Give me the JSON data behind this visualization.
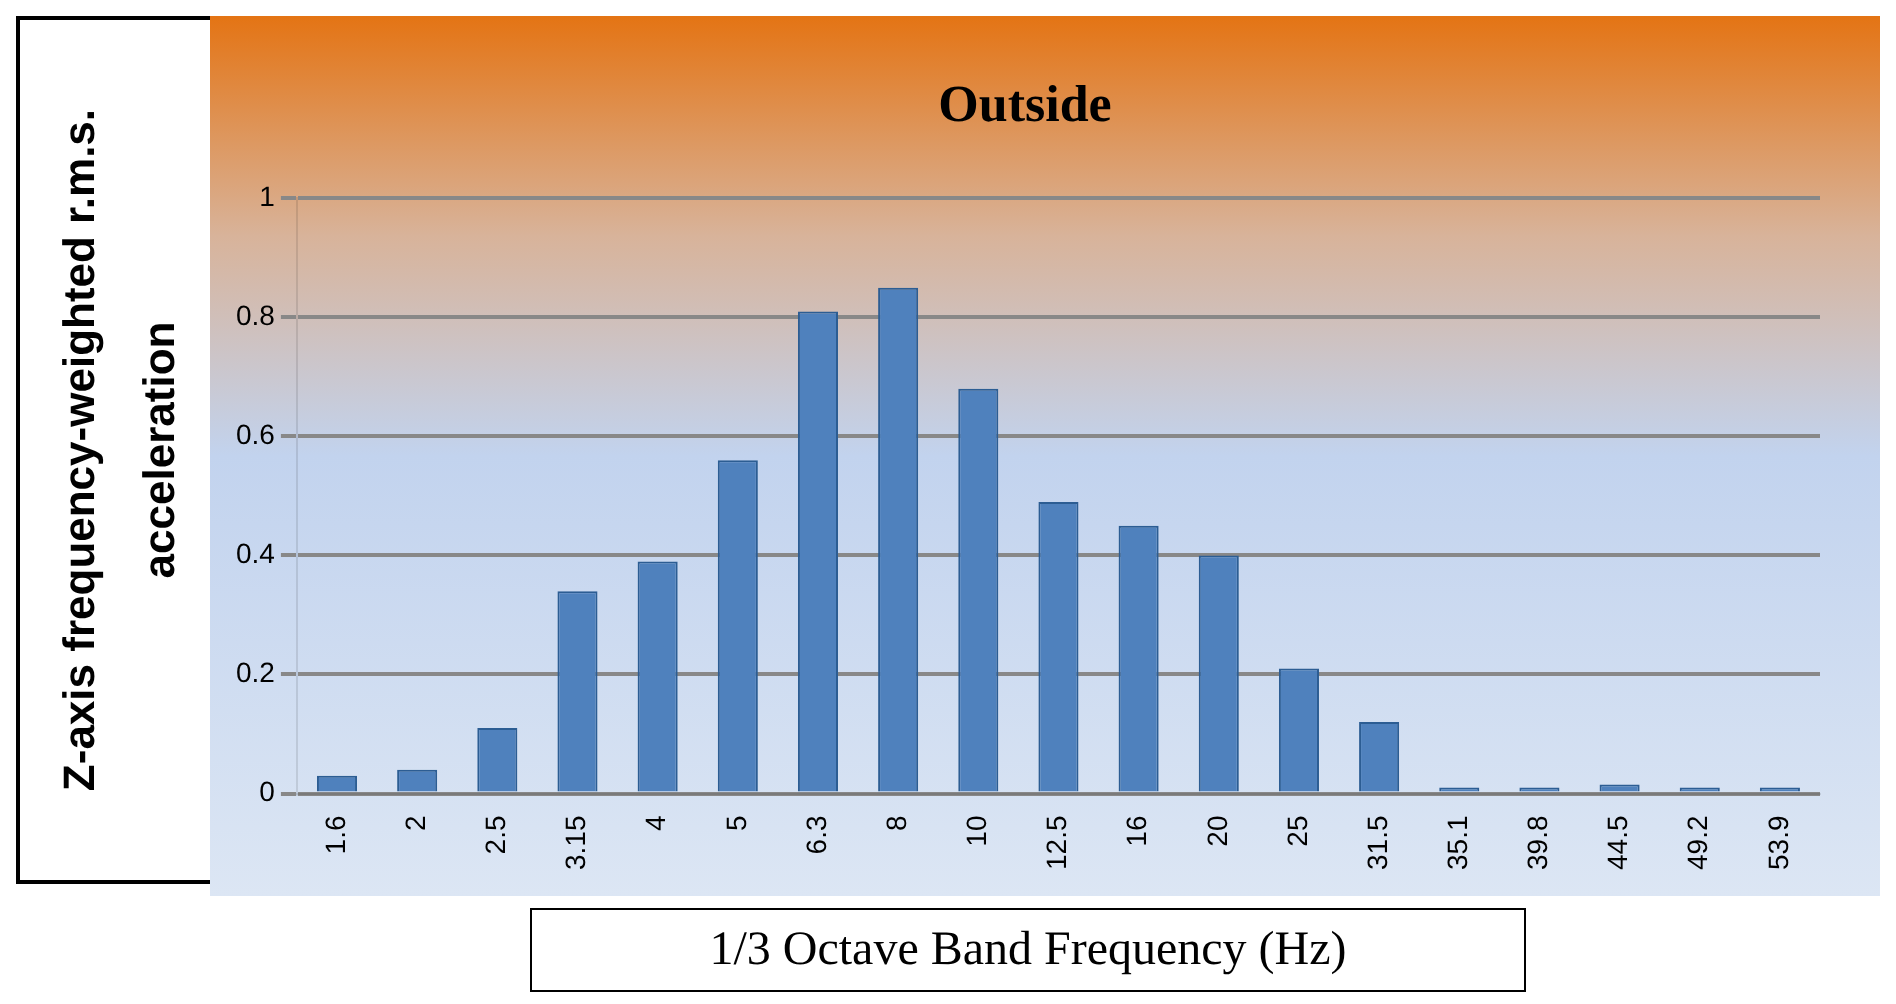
{
  "chart_data": {
    "type": "bar",
    "title": "Outside",
    "xlabel": "1/3 Octave Band Frequency (Hz)",
    "ylabel": "Z-axis frequency-weighted r.m.s. acceleration",
    "categories": [
      "1.6",
      "2",
      "2.5",
      "3.15",
      "4",
      "5",
      "6.3",
      "8",
      "10",
      "12.5",
      "16",
      "20",
      "25",
      "31.5",
      "35.1",
      "39.8",
      "44.5",
      "49.2",
      "53.9"
    ],
    "values": [
      0.03,
      0.04,
      0.11,
      0.34,
      0.39,
      0.56,
      0.81,
      0.85,
      0.68,
      0.49,
      0.45,
      0.4,
      0.21,
      0.12,
      0.01,
      0.01,
      0.015,
      0.01,
      0.01
    ],
    "color": "#4f81bd",
    "ylim": [
      0,
      1
    ],
    "yticks": [
      0,
      0.2,
      0.4,
      0.6,
      0.8,
      1
    ],
    "grid": "y",
    "legend": false
  }
}
